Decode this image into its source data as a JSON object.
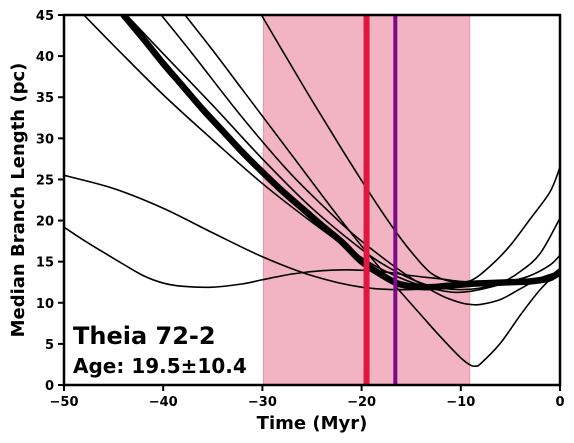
{
  "chart_data": {
    "type": "line",
    "title": "",
    "xlabel": "Time (Myr)",
    "ylabel": "Median Branch Length (pc)",
    "xlim": [
      -50,
      0
    ],
    "ylim": [
      0,
      45
    ],
    "xticks": [
      -50,
      -40,
      -30,
      -20,
      -10,
      0
    ],
    "yticks": [
      0,
      5,
      10,
      15,
      20,
      25,
      30,
      35,
      40,
      45
    ],
    "grid": false,
    "annotations": {
      "name": "Theia 72-2",
      "age": "Age: 19.5±10.4"
    },
    "age_range": {
      "from": -29.9,
      "to": -9.1,
      "color": "#f2b3c2"
    },
    "vlines": [
      {
        "x": -19.5,
        "color": "#e0173e"
      },
      {
        "x": -16.6,
        "color": "#7b0a8c"
      }
    ],
    "curves": [
      {
        "x": [
          -50,
          -48,
          -45,
          -42,
          -40,
          -38,
          -35,
          -32,
          -30,
          -27,
          -24,
          -21,
          -18,
          -15,
          -12,
          -10,
          -8,
          -6,
          -4,
          -2,
          0
        ],
        "y": [
          19.2,
          17.6,
          15.4,
          13.3,
          12.4,
          12.0,
          11.9,
          12.3,
          12.8,
          13.5,
          13.9,
          14.0,
          13.8,
          13.3,
          12.9,
          12.6,
          12.5,
          12.6,
          12.7,
          12.9,
          13.3
        ]
      },
      {
        "x": [
          -50,
          -45,
          -40,
          -35,
          -30,
          -25,
          -20,
          -15,
          -10,
          -5,
          -3,
          -1,
          0
        ],
        "y": [
          25.5,
          23.9,
          21.5,
          18.5,
          15.6,
          13.3,
          11.9,
          11.6,
          12.1,
          12.5,
          12.7,
          13.2,
          13.8
        ]
      },
      {
        "x": [
          -43.7,
          -40,
          -35,
          -30,
          -25,
          -20,
          -17,
          -14,
          -12,
          -10,
          -8,
          -6,
          -4,
          -2,
          0
        ],
        "y": [
          45,
          40.3,
          34.0,
          27.5,
          21.5,
          16.5,
          14.1,
          12.4,
          11.8,
          11.6,
          11.8,
          12.4,
          13.8,
          16.0,
          20.3
        ]
      },
      {
        "x": [
          -48.0,
          -45,
          -40,
          -35,
          -30,
          -25,
          -20,
          -17,
          -14,
          -11,
          -9,
          -7,
          -5,
          -3,
          -1,
          0
        ],
        "y": [
          45,
          41.3,
          35.3,
          29.8,
          24.5,
          19.8,
          15.5,
          13.5,
          12.1,
          11.3,
          11.4,
          11.9,
          12.6,
          13.3,
          14.6,
          15.8
        ]
      },
      {
        "x": [
          -40.2,
          -37,
          -33,
          -30,
          -27,
          -24,
          -21,
          -18,
          -15,
          -12,
          -10,
          -9,
          -8,
          -6,
          -4,
          -2,
          0
        ],
        "y": [
          45,
          40.2,
          34.0,
          29.6,
          25.5,
          21.9,
          18.5,
          15.6,
          13.0,
          10.9,
          10.0,
          9.8,
          9.8,
          10.4,
          11.7,
          13.0,
          13.8
        ]
      },
      {
        "x": [
          -37.8,
          -35,
          -32,
          -29,
          -26,
          -23,
          -20,
          -17,
          -14,
          -12,
          -10,
          -9,
          -8.5,
          -8,
          -6,
          -4,
          -2,
          0
        ],
        "y": [
          45,
          40.7,
          35.9,
          31.1,
          26.3,
          21.5,
          16.9,
          12.6,
          8.5,
          5.8,
          3.3,
          2.4,
          2.3,
          2.6,
          5.1,
          8.5,
          11.6,
          14.0
        ]
      },
      {
        "x": [
          -30.1,
          -28,
          -25,
          -22,
          -19,
          -17,
          -15,
          -13,
          -11,
          -9,
          -7,
          -5,
          -3,
          -1,
          0
        ],
        "y": [
          45,
          40.7,
          34.6,
          28.7,
          23.0,
          19.4,
          16.2,
          13.6,
          12.6,
          12.7,
          14.5,
          17.0,
          20.2,
          23.5,
          26.5
        ]
      }
    ],
    "thick_curve": {
      "x": [
        -44.0,
        -42,
        -40,
        -38,
        -36,
        -34,
        -32,
        -30,
        -28,
        -26,
        -24,
        -22,
        -20,
        -18,
        -16.5,
        -15,
        -13,
        -11,
        -9,
        -7,
        -5,
        -3,
        -1,
        0
      ],
      "y": [
        45,
        42.1,
        39.1,
        36.3,
        33.5,
        30.9,
        28.3,
        25.9,
        23.6,
        21.5,
        19.4,
        17.4,
        15.0,
        13.4,
        12.4,
        12.0,
        11.9,
        12.1,
        12.3,
        12.4,
        12.5,
        12.6,
        13.0,
        13.8
      ]
    }
  }
}
